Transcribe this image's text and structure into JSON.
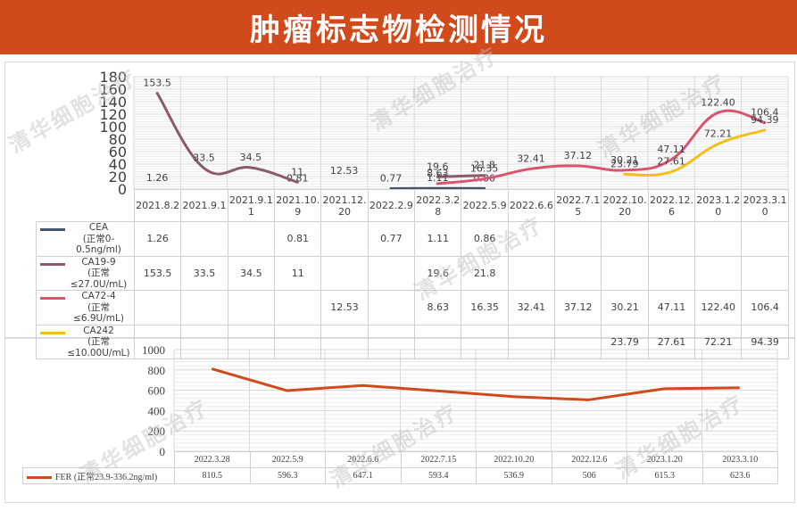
{
  "header": {
    "title": "肿瘤标志物检测情况",
    "bg_color": "#d04a1b"
  },
  "watermark": "清华细胞治疗",
  "chart_data": [
    {
      "type": "line",
      "title": "",
      "categories": [
        "2021.8.2",
        "2021.9.1",
        "2021.9.11",
        "2021.10.9",
        "2021.12.20",
        "2022.2.9",
        "2022.3.28",
        "2022.5.9",
        "2022.6.6",
        "2022.7.15",
        "2022.10.20",
        "2022.12.6",
        "2023.1.20",
        "2023.3.10"
      ],
      "category_labels": [
        "2021.8.2",
        "2021.9.1",
        "2021.9.1\n1",
        "2021.10.\n9",
        "2021.12.\n20",
        "2022.2.9",
        "2022.3.2\n8",
        "2022.5.9",
        "2022.6.6",
        "2022.7.1\n5",
        "2022.10.\n20",
        "2022.12.\n6",
        "2023.1.2\n0",
        "2023.3.1\n0"
      ],
      "yticks": [
        0,
        20,
        40,
        60,
        80,
        100,
        120,
        140,
        160,
        180
      ],
      "ylim": [
        0,
        180
      ],
      "grid": true,
      "legend_position": "data-table-left",
      "series": [
        {
          "name": "CEA",
          "range": "(正常0-0.5ng/ml)",
          "color": "#44546a",
          "values": [
            1.26,
            null,
            null,
            0.81,
            null,
            0.77,
            1.11,
            0.86,
            null,
            null,
            null,
            null,
            null,
            null
          ],
          "labels": [
            "1.26",
            "",
            "",
            "0.81",
            "",
            "0.77",
            "1.11",
            "0.86",
            "",
            "",
            "",
            "",
            "",
            ""
          ]
        },
        {
          "name": "CA19-9",
          "range": "(正常≤27.0U/mL)",
          "color": "#8c5a6e",
          "values": [
            153.5,
            33.5,
            34.5,
            11,
            null,
            null,
            19.6,
            21.8,
            null,
            null,
            null,
            null,
            null,
            null
          ],
          "labels": [
            "153.5",
            "33.5",
            "34.5",
            "11",
            "",
            "",
            "19.6",
            "21.8",
            "",
            "",
            "",
            "",
            "",
            ""
          ]
        },
        {
          "name": "CA72-4",
          "range": "(正常≤6.9U/mL)",
          "color": "#d9546e",
          "values": [
            null,
            null,
            null,
            null,
            12.53,
            null,
            8.63,
            16.35,
            32.41,
            37.12,
            30.21,
            47.11,
            122.4,
            106.4
          ],
          "labels": [
            "",
            "",
            "",
            "",
            "12.53",
            "",
            "8.63",
            "16.35",
            "32.41",
            "37.12",
            "30.21",
            "47.11",
            "122.40",
            "106.4"
          ]
        },
        {
          "name": "CA242",
          "range": "(正常≤10.00U/mL)",
          "color": "#f5be1a",
          "values": [
            null,
            null,
            null,
            null,
            null,
            null,
            null,
            null,
            null,
            null,
            23.79,
            27.61,
            72.21,
            94.39
          ],
          "labels": [
            "",
            "",
            "",
            "",
            "",
            "",
            "",
            "",
            "",
            "",
            "23.79",
            "27.61",
            "72.21",
            "94.39"
          ]
        }
      ]
    },
    {
      "type": "line",
      "title": "",
      "categories": [
        "2022.3.28",
        "2022.5.9",
        "2022.6.6",
        "2022.7.15",
        "2022.10.20",
        "2022.12.6",
        "2023.1.20",
        "2023.3.10"
      ],
      "yticks": [
        0,
        200,
        400,
        600,
        800,
        1000
      ],
      "ylim": [
        0,
        1000
      ],
      "grid": true,
      "legend_position": "data-table-left",
      "series": [
        {
          "name": "FER (正常23.9-336.2ng/ml)",
          "color": "#d04a1b",
          "values": [
            810.5,
            596.3,
            647.1,
            593.4,
            536.9,
            506,
            615.3,
            623.6
          ],
          "labels": [
            "810.5",
            "596.3",
            "647.1",
            "593.4",
            "536.9",
            "506",
            "615.3",
            "623.6"
          ]
        }
      ]
    }
  ]
}
